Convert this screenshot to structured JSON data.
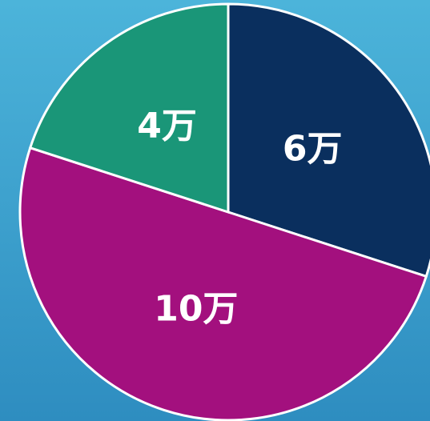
{
  "chart_data": {
    "type": "pie",
    "categories": [
      null,
      null,
      null
    ],
    "values": [
      6,
      10,
      4
    ],
    "value_labels": [
      "6万",
      "10万",
      "4万"
    ],
    "colors": [
      "#0a2f5e",
      "#a3107e",
      "#1a9678"
    ]
  }
}
